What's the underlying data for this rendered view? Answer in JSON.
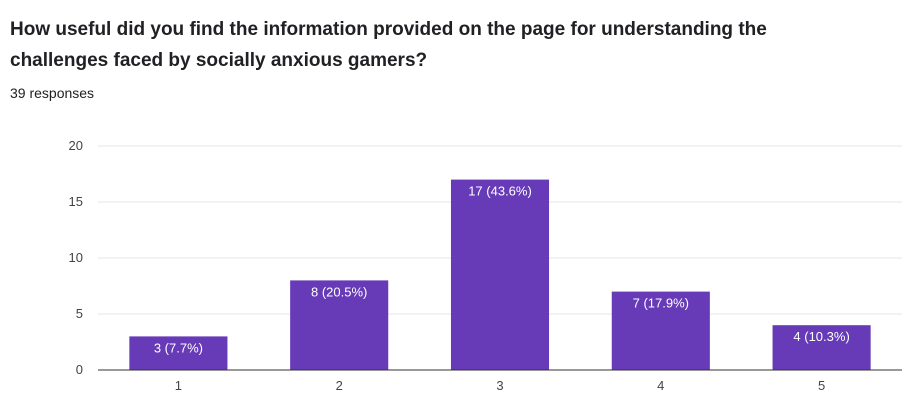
{
  "question": {
    "title": "How useful did you find the information provided on the page for understanding the challenges faced by socially anxious gamers?",
    "responses": "39 responses"
  },
  "colors": {
    "bar": "#673ab7",
    "gridline": "#e6e6e6",
    "axis": "#333333"
  },
  "chart_data": {
    "type": "bar",
    "categories": [
      "1",
      "2",
      "3",
      "4",
      "5"
    ],
    "values": [
      3,
      8,
      17,
      7,
      4
    ],
    "data_labels": [
      "3 (7.7%)",
      "8 (20.5%)",
      "17 (43.6%)",
      "7 (17.9%)",
      "4 (10.3%)"
    ],
    "ylim": [
      0,
      20
    ],
    "yticks": [
      "0",
      "5",
      "10",
      "15",
      "20"
    ],
    "grid": true,
    "legend": "none"
  }
}
